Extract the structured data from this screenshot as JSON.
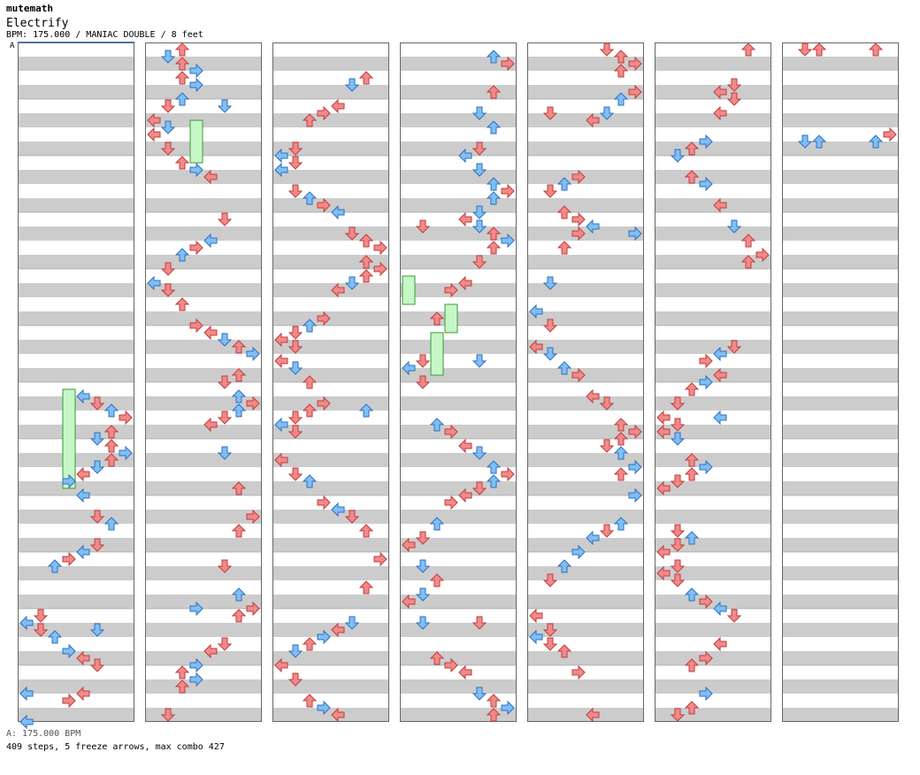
{
  "header": {
    "artist": "mutemath",
    "title": "Electrify",
    "meta": "BPM: 175.000 / MANIAC DOUBLE / 8 feet"
  },
  "section_label": "A",
  "footer": {
    "bpm": "A: 175.000 BPM",
    "stats": "409 steps, 5 freeze arrows, max combo 427"
  },
  "chart_colors": {
    "stripe": "#cccccc",
    "background": "#ffffff",
    "border": "#666666",
    "arrow_red": "#f08a8a",
    "arrow_red_stroke": "#c43b3b",
    "arrow_blue": "#7fbff5",
    "arrow_blue_stroke": "#2f6fbf",
    "freeze_fill": "#c6f7c6",
    "freeze_stroke": "#3a9a3a",
    "bpm_marker": "#3a7fd0"
  },
  "columns_count": 7
}
